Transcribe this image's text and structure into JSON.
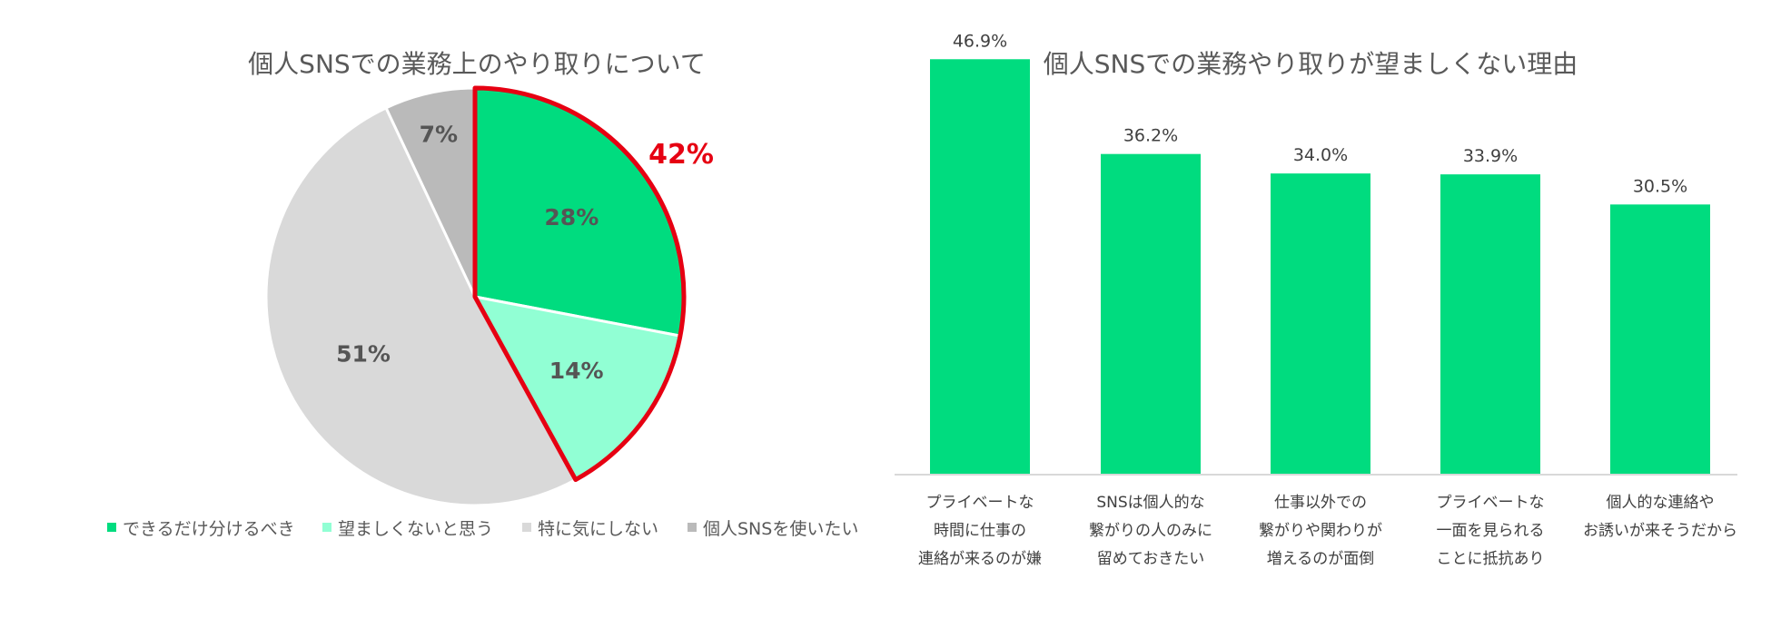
{
  "chart_data": [
    {
      "type": "pie",
      "title": "個人SNSでの業務上のやり取りについて",
      "slices": [
        {
          "label": "できるだけ分けるべき",
          "value": 28,
          "value_label": "28%",
          "color": "#00DC7F"
        },
        {
          "label": "望ましくないと思う",
          "value": 14,
          "value_label": "14%",
          "color": "#91FFD4"
        },
        {
          "label": "特に気にしない",
          "value": 51,
          "value_label": "51%",
          "color": "#D9D9D9"
        },
        {
          "label": "個人SNSを使いたい",
          "value": 7,
          "value_label": "7%",
          "color": "#BABABA"
        }
      ],
      "highlight": {
        "label": "42%",
        "slices": [
          0,
          1
        ],
        "color": "#E60012"
      },
      "legend_position": "bottom",
      "value_label_color": "#555555"
    },
    {
      "type": "bar",
      "title": "個人SNSでの業務やり取りが望ましくない理由",
      "categories": [
        [
          "プライベートな",
          "時間に仕事の",
          "連絡が来るのが嫌"
        ],
        [
          "SNSは個人的な",
          "繋がりの人のみに",
          "留めておきたい"
        ],
        [
          "仕事以外での",
          "繋がりや関わりが",
          "増えるのが面倒"
        ],
        [
          "プライベートな",
          "一面を見られる",
          "ことに抵抗あり"
        ],
        [
          "個人的な連絡や",
          "お誘いが来そうだから"
        ]
      ],
      "values": [
        46.9,
        36.2,
        34.0,
        33.9,
        30.5
      ],
      "value_labels": [
        "46.9%",
        "36.2%",
        "34.0%",
        "33.9%",
        "30.5%"
      ],
      "ylim": [
        0,
        50
      ],
      "color": "#00DC7F",
      "xlabel": "",
      "ylabel": ""
    }
  ]
}
